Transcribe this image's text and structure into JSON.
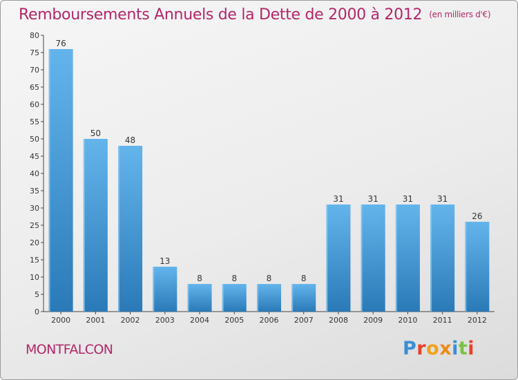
{
  "header": {
    "title": "Remboursements Annuels de la Dette de 2000 à 2012",
    "unit": "(en milliers d'€)"
  },
  "footer": {
    "commune": "MONTFALCON",
    "brand": "Proxiti"
  },
  "colors": {
    "accent": "#b3266a",
    "bar_light": "#64b4ec",
    "bar_dark": "#2a7ab8"
  },
  "chart_data": {
    "type": "bar",
    "title": "Remboursements Annuels de la Dette de 2000 à 2012",
    "subtitle": "(en milliers d'€)",
    "categories": [
      "2000",
      "2001",
      "2002",
      "2003",
      "2004",
      "2005",
      "2006",
      "2007",
      "2008",
      "2009",
      "2010",
      "2011",
      "2012"
    ],
    "values": [
      76,
      50,
      48,
      13,
      8,
      8,
      8,
      8,
      31,
      31,
      31,
      31,
      26
    ],
    "ylim": [
      0,
      80
    ],
    "yticks": [
      0,
      5,
      10,
      15,
      20,
      25,
      30,
      35,
      40,
      45,
      50,
      55,
      60,
      65,
      70,
      75,
      80
    ],
    "grid": false,
    "legend": "none"
  }
}
